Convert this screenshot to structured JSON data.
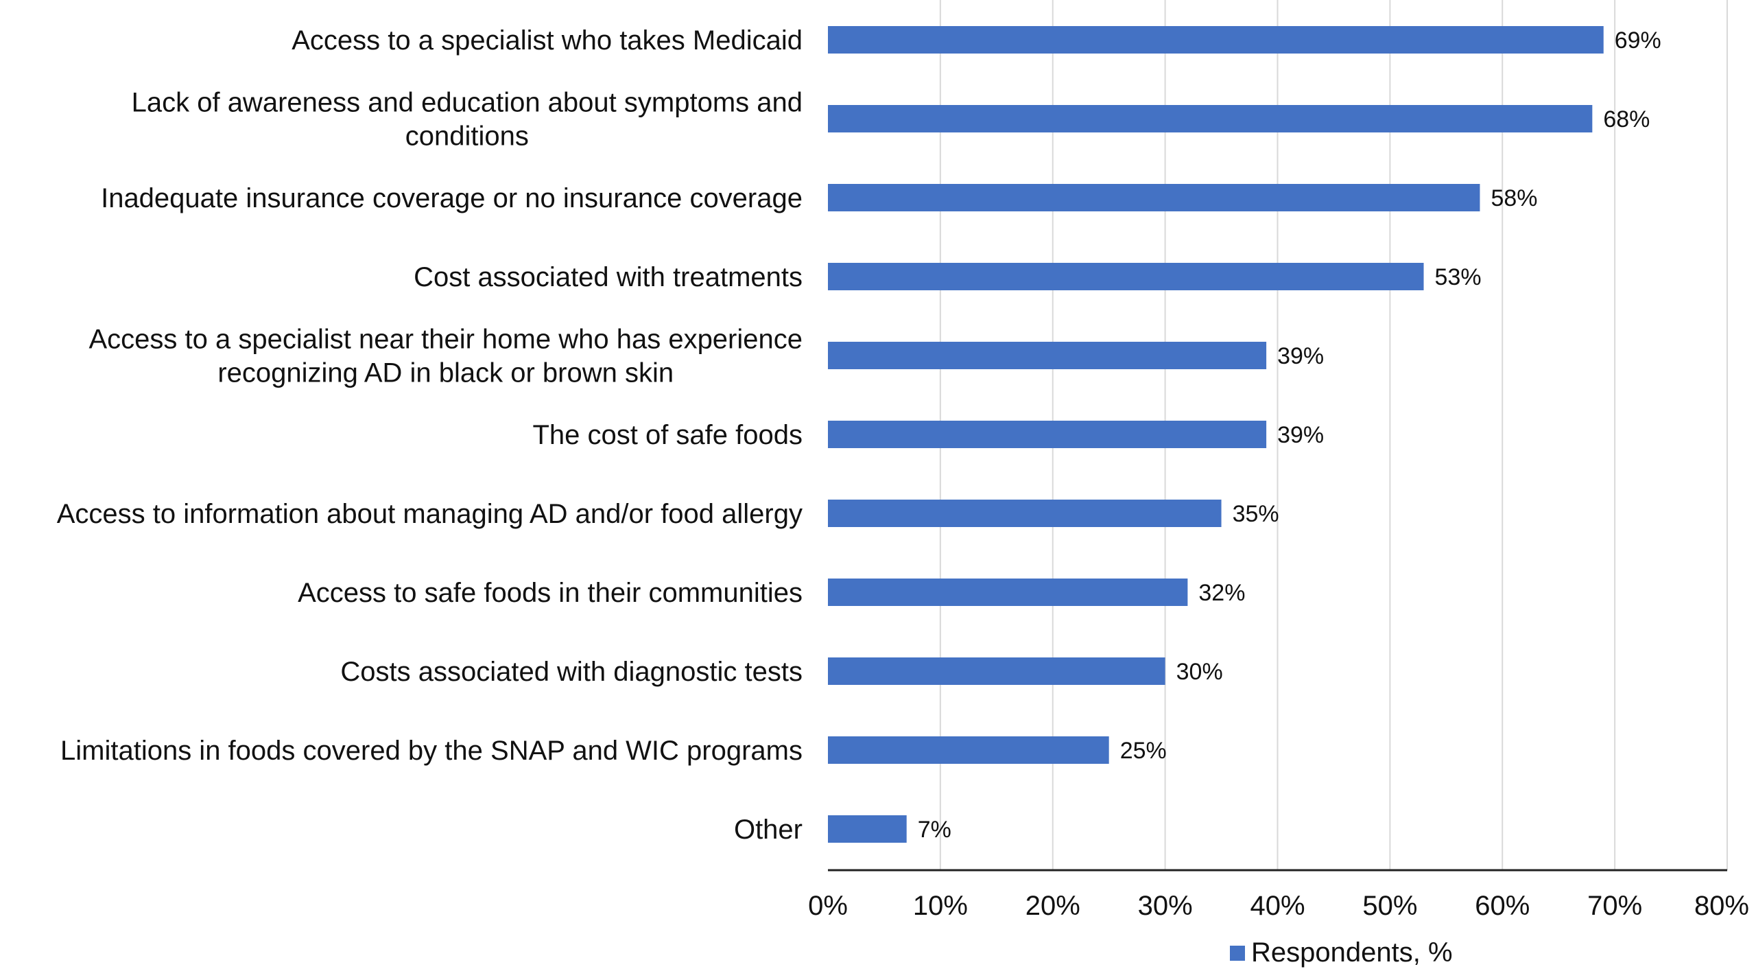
{
  "chart_data": {
    "type": "bar",
    "orientation": "horizontal",
    "categories": [
      [
        "Access to a specialist who takes Medicaid"
      ],
      [
        "Lack of awareness and education about symptoms and",
        "conditions"
      ],
      [
        "Inadequate insurance coverage or no insurance coverage"
      ],
      [
        "Cost associated with treatments"
      ],
      [
        "Access to a specialist near their home who has experience",
        "recognizing AD in black or brown skin"
      ],
      [
        "The cost of safe foods"
      ],
      [
        "Access to information about managing AD and/or food allergy"
      ],
      [
        "Access to safe foods in their communities"
      ],
      [
        "Costs associated with diagnostic tests"
      ],
      [
        "Limitations in foods covered by the SNAP and WIC programs"
      ],
      [
        "Other"
      ]
    ],
    "values": [
      69,
      68,
      58,
      53,
      39,
      39,
      35,
      32,
      30,
      25,
      7
    ],
    "value_labels": [
      "69%",
      "68%",
      "58%",
      "53%",
      "39%",
      "39%",
      "35%",
      "32%",
      "30%",
      "25%",
      "7%"
    ],
    "xlim": [
      0,
      80
    ],
    "xticks": [
      0,
      10,
      20,
      30,
      40,
      50,
      60,
      70,
      80
    ],
    "xtick_labels": [
      "0%",
      "10%",
      "20%",
      "30%",
      "40%",
      "50%",
      "60%",
      "70%",
      "80%"
    ],
    "series": [
      {
        "name": "Respondents, %"
      }
    ],
    "bar_color": "#4472C4",
    "grid": true,
    "legend_position": "bottom"
  }
}
